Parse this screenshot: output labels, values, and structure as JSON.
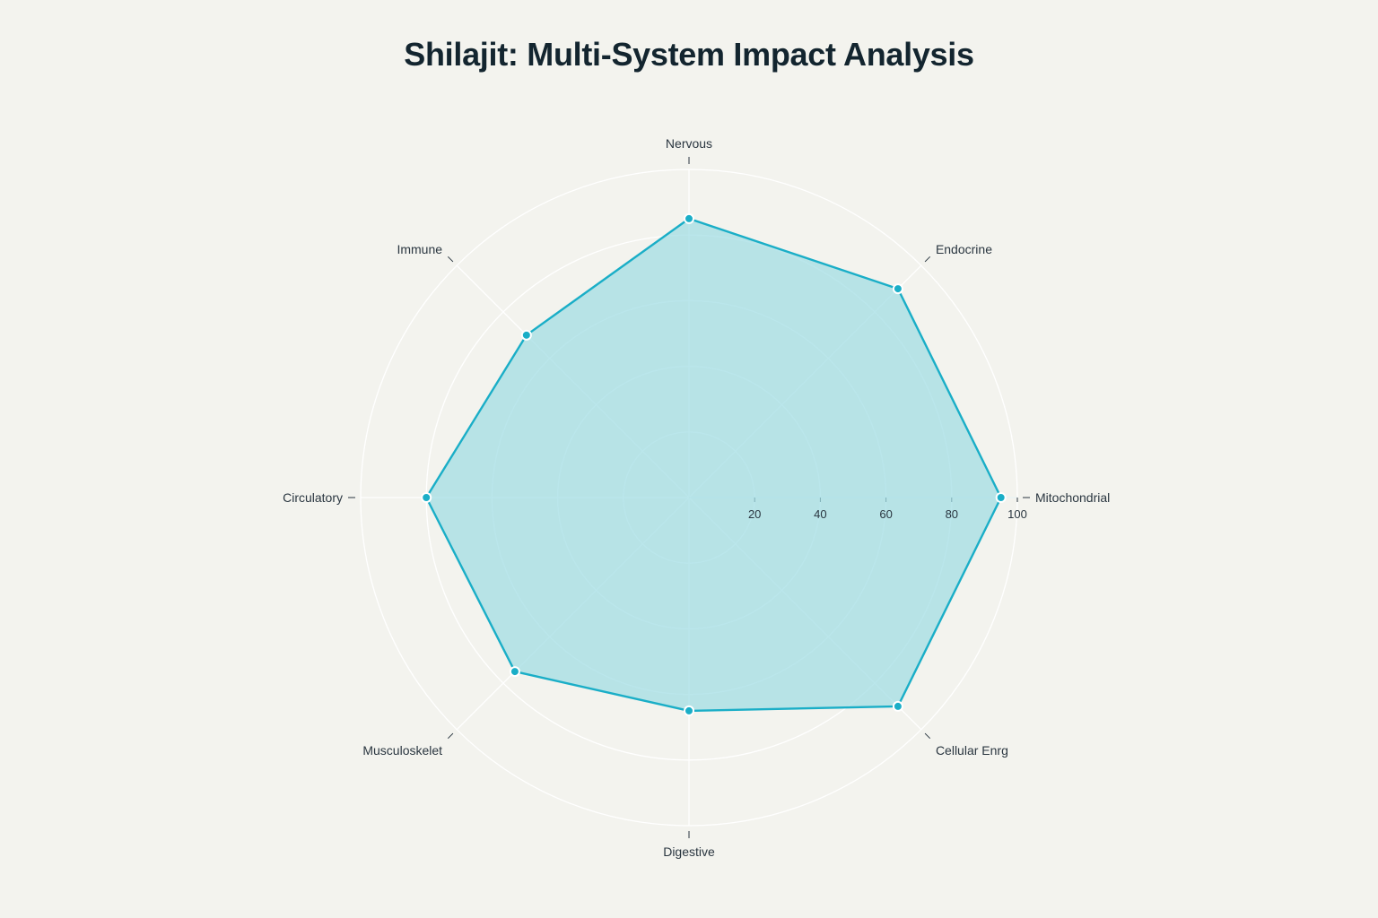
{
  "chart_data": {
    "type": "radar",
    "title": "Shilajit: Multi-System Impact Analysis",
    "categories": [
      "Mitochondrial",
      "Endocrine",
      "Nervous",
      "Immune",
      "Circulatory",
      "Musculoskelet",
      "Digestive",
      "Cellular Enrg"
    ],
    "series": [
      {
        "values": [
          95,
          90,
          85,
          70,
          80,
          75,
          65,
          90
        ]
      }
    ],
    "radial_range": [
      0,
      100
    ],
    "radial_ticks": [
      20,
      40,
      60,
      80,
      100
    ],
    "grid": true,
    "colors": {
      "line": "#1aaec7",
      "fill": "#9fdde3",
      "grid": "#ffffff"
    }
  }
}
